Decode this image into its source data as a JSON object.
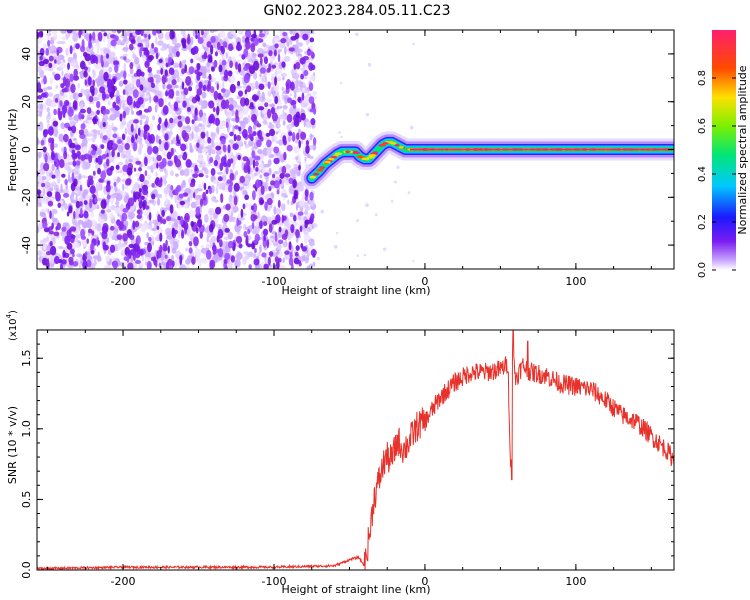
{
  "title": "GN02.2023.284.05.11.C23",
  "chart_data": [
    {
      "type": "heatmap",
      "xlabel": "Height of straight line (km)",
      "ylabel": "Frequency (Hz)",
      "xlim": [
        -257,
        165
      ],
      "ylim": [
        -50,
        50
      ],
      "x_ticks": [
        -200,
        -100,
        0,
        100
      ],
      "y_ticks": [
        -40,
        -20,
        0,
        20,
        40
      ],
      "noise_region_x": [
        -257,
        -73
      ],
      "ridge": {
        "x": [
          -75,
          -70,
          -66,
          -62,
          -58,
          -55,
          -50,
          -46,
          -43,
          -40,
          -37,
          -34,
          -31,
          -28,
          -25,
          -22,
          -19,
          -16,
          -13,
          -10,
          0,
          50,
          100,
          165
        ],
        "y": [
          -12,
          -9,
          -6,
          -4,
          -2,
          -1,
          -1,
          -1,
          -3,
          -4,
          -4,
          -2,
          0,
          2,
          3,
          3,
          2,
          1,
          0,
          0,
          0,
          0,
          0,
          0
        ]
      },
      "colorbar": {
        "label": "Normalized spectral amplitude",
        "range": [
          0,
          1
        ],
        "ticks": [
          "0.0",
          "0.2",
          "0.4",
          "0.6",
          "0.8"
        ]
      }
    },
    {
      "type": "line",
      "xlabel": "Height of straight line (km)",
      "ylabel": "SNR (10 * v/v)",
      "yscale_label": "(x10",
      "yscale_exp": "4",
      "yscale_close": ")",
      "xlim": [
        -257,
        165
      ],
      "ylim": [
        0,
        1.7
      ],
      "x_ticks": [
        -200,
        -100,
        0,
        100
      ],
      "y_ticks": [
        "0.0",
        "0.5",
        "1.0",
        "1.5"
      ],
      "series": [
        {
          "color": "#e8312a",
          "x": [
            -257,
            -200,
            -100,
            -60,
            -48,
            -44,
            -40,
            -36,
            -34,
            -30,
            -26,
            -22,
            -18,
            -14,
            -10,
            -5,
            0,
            10,
            20,
            30,
            40,
            50,
            55,
            57,
            58,
            60,
            65,
            70,
            80,
            90,
            100,
            110,
            120,
            130,
            140,
            150,
            160,
            165
          ],
          "y": [
            0.01,
            0.02,
            0.02,
            0.03,
            0.08,
            0.09,
            0.03,
            0.3,
            0.5,
            0.65,
            0.8,
            0.78,
            0.92,
            0.85,
            0.92,
            1.02,
            1.05,
            1.22,
            1.33,
            1.4,
            1.4,
            1.42,
            1.46,
            0.65,
            1.55,
            1.36,
            1.45,
            1.4,
            1.38,
            1.32,
            1.3,
            1.28,
            1.2,
            1.1,
            1.05,
            0.95,
            0.85,
            0.78
          ],
          "noise_amp": 0.07,
          "spikes": [
            {
              "x": 57.5,
              "y": 0.64
            },
            {
              "x": 58.5,
              "y": 1.7
            },
            {
              "x": 68,
              "y": 1.62
            }
          ]
        }
      ]
    }
  ]
}
